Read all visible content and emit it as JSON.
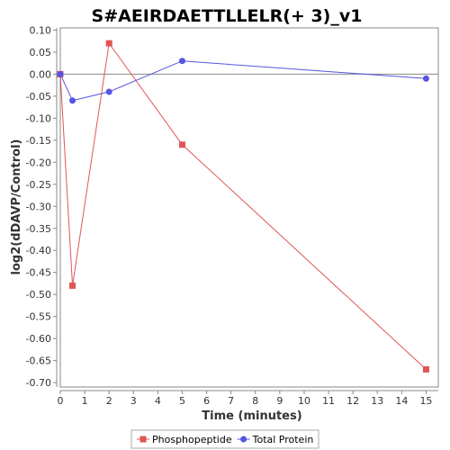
{
  "chart_data": {
    "type": "line",
    "title": "S#AEIRDAETTLLELR(+ 3)_v1",
    "xlabel": "Time (minutes)",
    "ylabel": "log2(dDAVP/Control)",
    "xlim": [
      0,
      15.5
    ],
    "ylim": [
      -0.71,
      0.105
    ],
    "x_ticks": [
      0,
      1,
      2,
      3,
      4,
      5,
      6,
      7,
      8,
      9,
      10,
      11,
      12,
      13,
      14,
      15
    ],
    "y_ticks": [
      0.1,
      0.05,
      0.0,
      -0.05,
      -0.1,
      -0.15,
      -0.2,
      -0.25,
      -0.3,
      -0.35,
      -0.4,
      -0.45,
      -0.5,
      -0.55,
      -0.6,
      -0.65,
      -0.7
    ],
    "x_tick_labels": [
      "0",
      "1",
      "2",
      "3",
      "4",
      "5",
      "6",
      "7",
      "8",
      "9",
      "10",
      "11",
      "12",
      "13",
      "14",
      "15"
    ],
    "y_tick_labels": [
      "0.10",
      "0.05",
      "0.00",
      "-0.05",
      "-0.10",
      "-0.15",
      "-0.20",
      "-0.25",
      "-0.30",
      "-0.35",
      "-0.40",
      "-0.45",
      "-0.50",
      "-0.55",
      "-0.60",
      "-0.65",
      "-0.70"
    ],
    "zero_line": true,
    "grid": false,
    "legend_position": "bottom",
    "series": [
      {
        "name": "Phosphopeptide",
        "color": "#e05555",
        "marker": "square",
        "x": [
          0,
          0.5,
          2,
          5,
          15
        ],
        "y": [
          0.0,
          -0.48,
          0.07,
          -0.16,
          -0.67
        ]
      },
      {
        "name": "Total Protein",
        "color": "#5555e0",
        "marker": "circle",
        "x": [
          0,
          0.5,
          2,
          5,
          15
        ],
        "y": [
          0.0,
          -0.06,
          -0.04,
          0.03,
          -0.01
        ]
      }
    ]
  }
}
